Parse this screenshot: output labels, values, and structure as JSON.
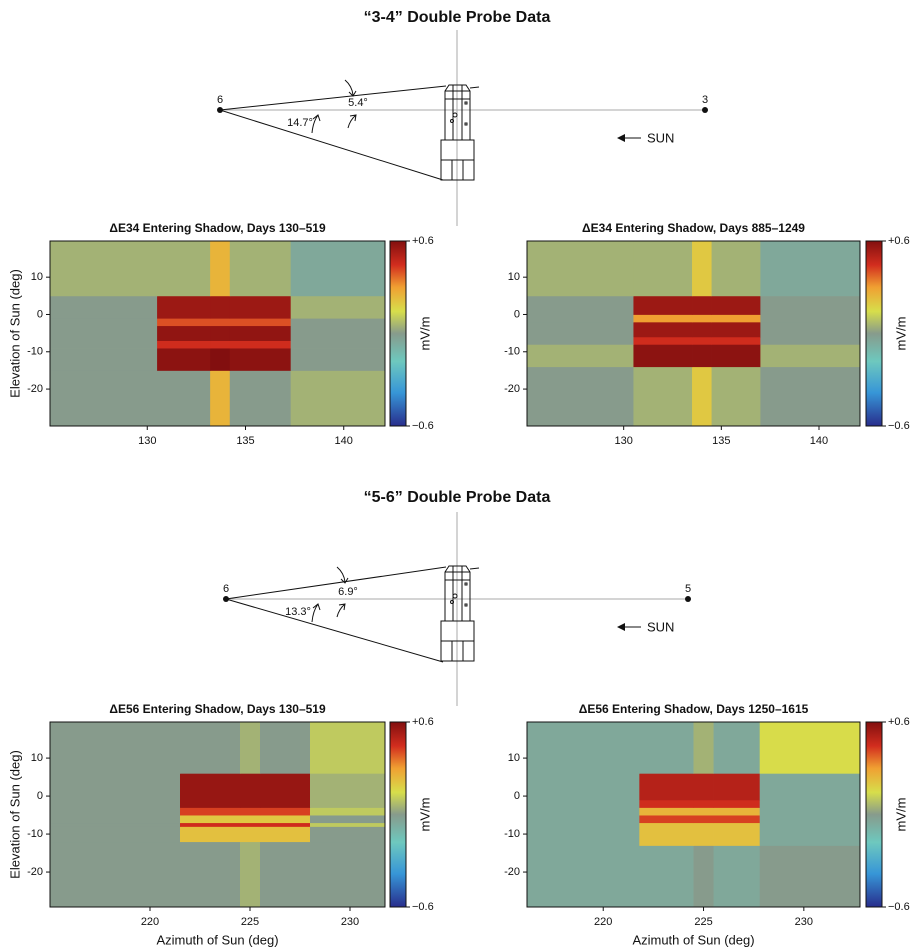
{
  "diagrams": [
    {
      "title": "“3-4” Double Probe Data",
      "probe_left": "6",
      "probe_right": "3",
      "angle_upper": "5.4°",
      "angle_lower": "14.7°",
      "sun": "SUN"
    },
    {
      "title": "“5-6” Double Probe Data",
      "probe_left": "6",
      "probe_right": "5",
      "angle_upper": "6.9°",
      "angle_lower": "13.3°",
      "sun": "SUN"
    }
  ],
  "chart_data": [
    {
      "type": "heatmap",
      "title": "ΔE34 Entering Shadow, Days 130–519",
      "ylabel": "Elevation of Sun (deg)",
      "colorbar_label": "mV/m",
      "xlim": [
        125.05,
        142.1
      ],
      "ylim": [
        -29.9,
        19.7
      ],
      "xticks": [
        130,
        135,
        140
      ],
      "yticks": [
        10,
        0,
        -10,
        -20
      ],
      "clim": [
        -0.6,
        0.6
      ],
      "cticks": [
        {
          "value": 0.6,
          "label": "+0.6"
        },
        {
          "value": -0.6,
          "label": "−0.6"
        }
      ],
      "x_edges": [
        125.05,
        130.5,
        133.2,
        134.2,
        137.3,
        142.1
      ],
      "y_edges": [
        -29.9,
        -15,
        -9,
        -7,
        -3,
        -1,
        5,
        19.7
      ],
      "z": [
        [
          0,
          0,
          0.25,
          0,
          0.05
        ],
        [
          0,
          0.58,
          0.6,
          0.58,
          0
        ],
        [
          0,
          0.45,
          0.45,
          0.45,
          0
        ],
        [
          0,
          0.57,
          0.57,
          0.57,
          0
        ],
        [
          0,
          0.4,
          0.4,
          0.4,
          0
        ],
        [
          0,
          0.55,
          0.55,
          0.55,
          0.05
        ],
        [
          0.05,
          0.05,
          0.25,
          0.05,
          -0.05
        ]
      ]
    },
    {
      "type": "heatmap",
      "title": "ΔE34 Entering Shadow, Days 885–1249",
      "colorbar_label": "mV/m",
      "xlim": [
        125.05,
        142.1
      ],
      "ylim": [
        -29.9,
        19.7
      ],
      "xticks": [
        130,
        135,
        140
      ],
      "yticks": [
        10,
        0,
        -10,
        -20
      ],
      "clim": [
        -0.6,
        0.6
      ],
      "cticks": [
        {
          "value": 0.6,
          "label": "+0.6"
        },
        {
          "value": -0.6,
          "label": "−0.6"
        }
      ],
      "x_edges": [
        125.05,
        130.5,
        133.5,
        134.5,
        137,
        142.1
      ],
      "y_edges": [
        -29.9,
        -14,
        -8,
        -6,
        -2,
        0,
        5,
        19.7
      ],
      "z": [
        [
          0,
          0.05,
          0.2,
          0.05,
          0
        ],
        [
          0.05,
          0.58,
          0.58,
          0.58,
          0.05
        ],
        [
          0,
          0.45,
          0.45,
          0.45,
          0
        ],
        [
          0,
          0.55,
          0.55,
          0.55,
          0
        ],
        [
          0,
          0.3,
          0.3,
          0.3,
          0
        ],
        [
          0,
          0.55,
          0.55,
          0.55,
          0
        ],
        [
          0.05,
          0.05,
          0.2,
          0.05,
          -0.05
        ]
      ]
    },
    {
      "type": "heatmap",
      "title": "ΔE56 Entering Shadow, Days 130–519",
      "xlabel": "Azimuth of Sun (deg)",
      "ylabel": "Elevation of Sun (deg)",
      "colorbar_label": "mV/m",
      "xlim": [
        215,
        231.75
      ],
      "ylim": [
        -29.2,
        19.5
      ],
      "xticks": [
        220,
        225,
        230
      ],
      "yticks": [
        10,
        0,
        -10,
        -20
      ],
      "clim": [
        -0.6,
        0.6
      ],
      "cticks": [
        {
          "value": 0.6,
          "label": "+0.6"
        },
        {
          "value": -0.6,
          "label": "−0.6"
        }
      ],
      "x_edges": [
        215,
        221.5,
        224.5,
        225.5,
        228,
        231.75
      ],
      "y_edges": [
        -29.2,
        -12,
        -8,
        -7,
        -5,
        -3,
        6,
        19.5
      ],
      "z": [
        [
          0,
          0,
          0.05,
          0,
          0
        ],
        [
          0,
          0.22,
          0.22,
          0.22,
          0
        ],
        [
          0,
          0.45,
          0.45,
          0.45,
          0.1
        ],
        [
          0,
          0.2,
          0.2,
          0.2,
          0
        ],
        [
          0,
          0.42,
          0.42,
          0.42,
          0.1
        ],
        [
          0,
          0.56,
          0.56,
          0.56,
          0.05
        ],
        [
          0,
          0,
          0.05,
          0,
          0.1
        ]
      ]
    },
    {
      "type": "heatmap",
      "title": "ΔE56 Entering Shadow, Days 1250–1615",
      "xlabel": "Azimuth of Sun (deg)",
      "colorbar_label": "mV/m",
      "xlim": [
        216.2,
        232.8
      ],
      "ylim": [
        -29.2,
        19.5
      ],
      "xticks": [
        220,
        225,
        230
      ],
      "yticks": [
        10,
        0,
        -10,
        -20
      ],
      "clim": [
        -0.6,
        0.6
      ],
      "cticks": [
        {
          "value": 0.6,
          "label": "+0.6"
        },
        {
          "value": -0.6,
          "label": "−0.6"
        }
      ],
      "x_edges": [
        216.2,
        221.8,
        224.5,
        225.5,
        227.8,
        232.8
      ],
      "y_edges": [
        -29.2,
        -13,
        -7,
        -5,
        -3,
        -1,
        6,
        19.5
      ],
      "z": [
        [
          -0.05,
          -0.05,
          0,
          -0.05,
          0
        ],
        [
          -0.05,
          0.22,
          0.22,
          0.22,
          -0.05
        ],
        [
          -0.05,
          0.42,
          0.42,
          0.42,
          -0.05
        ],
        [
          -0.05,
          0.25,
          0.25,
          0.25,
          -0.05
        ],
        [
          -0.05,
          0.45,
          0.45,
          0.45,
          -0.05
        ],
        [
          -0.05,
          0.5,
          0.5,
          0.5,
          -0.05
        ],
        [
          -0.05,
          -0.05,
          0.05,
          -0.05,
          0.15
        ]
      ]
    }
  ]
}
